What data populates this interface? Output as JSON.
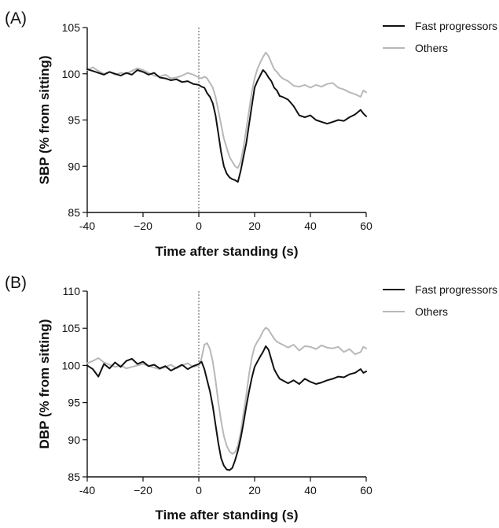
{
  "chart_data": [
    {
      "panel": "(A)",
      "type": "line",
      "xlabel": "Time after standing (s)",
      "ylabel": "SBP (% from sitting)",
      "xlim": [
        -40,
        60
      ],
      "ylim": [
        85,
        105
      ],
      "xticks": [
        "-40",
        "−20",
        "0",
        "20",
        "40",
        "60"
      ],
      "yticks": [
        "85",
        "90",
        "95",
        "100",
        "105"
      ],
      "legend_position": "top-right",
      "reference_line_x": 0,
      "series": [
        {
          "name": "Fast progressors",
          "color": "#111111",
          "x": [
            -40,
            -38,
            -36,
            -34,
            -32,
            -30,
            -28,
            -26,
            -24,
            -22,
            -20,
            -18,
            -16,
            -14,
            -12,
            -10,
            -8,
            -6,
            -4,
            -2,
            0,
            1,
            2,
            3,
            4,
            5,
            6,
            7,
            8,
            9,
            10,
            11,
            12,
            13,
            14,
            15,
            16,
            17,
            18,
            19,
            20,
            21,
            22,
            23,
            24,
            25,
            26,
            27,
            28,
            29,
            30,
            32,
            34,
            36,
            38,
            40,
            42,
            44,
            46,
            48,
            50,
            52,
            54,
            56,
            58,
            59,
            60
          ],
          "values": [
            100.5,
            100.3,
            100.1,
            99.9,
            100.2,
            100.0,
            99.8,
            100.1,
            99.9,
            100.4,
            100.2,
            99.9,
            100.1,
            99.6,
            99.5,
            99.3,
            99.4,
            99.1,
            99.2,
            98.9,
            98.8,
            98.6,
            98.5,
            97.9,
            97.5,
            96.8,
            95.5,
            93.5,
            91.5,
            90.0,
            89.2,
            88.8,
            88.6,
            88.5,
            88.3,
            89.5,
            91.0,
            92.5,
            94.5,
            96.5,
            98.5,
            99.2,
            99.8,
            100.4,
            100.1,
            99.6,
            99.2,
            98.5,
            98.2,
            97.6,
            97.5,
            97.2,
            96.5,
            95.5,
            95.3,
            95.5,
            95.0,
            94.8,
            94.6,
            94.8,
            95.0,
            94.9,
            95.3,
            95.6,
            96.1,
            95.7,
            95.4
          ]
        },
        {
          "name": "Others",
          "color": "#b8b8b8",
          "x": [
            -40,
            -38,
            -36,
            -34,
            -32,
            -30,
            -28,
            -26,
            -24,
            -22,
            -20,
            -18,
            -16,
            -14,
            -12,
            -10,
            -8,
            -6,
            -4,
            -2,
            0,
            1,
            2,
            3,
            4,
            5,
            6,
            7,
            8,
            9,
            10,
            11,
            12,
            13,
            14,
            15,
            16,
            17,
            18,
            19,
            20,
            21,
            22,
            23,
            24,
            25,
            26,
            27,
            28,
            29,
            30,
            32,
            34,
            36,
            38,
            40,
            42,
            44,
            46,
            48,
            50,
            52,
            54,
            56,
            58,
            59,
            60
          ],
          "values": [
            100.4,
            100.7,
            100.3,
            100.0,
            100.2,
            99.9,
            100.1,
            100.0,
            100.3,
            100.6,
            100.4,
            100.1,
            99.8,
            99.7,
            99.9,
            99.5,
            99.6,
            99.8,
            100.1,
            99.9,
            99.6,
            99.5,
            99.7,
            99.5,
            99.0,
            98.5,
            97.5,
            96.0,
            94.5,
            93.0,
            92.0,
            91.0,
            90.5,
            90.0,
            89.8,
            90.5,
            92.0,
            94.0,
            96.0,
            98.0,
            99.5,
            100.5,
            101.2,
            101.8,
            102.3,
            101.9,
            101.2,
            100.5,
            100.2,
            99.8,
            99.5,
            99.2,
            98.7,
            98.6,
            98.8,
            98.5,
            98.8,
            98.6,
            98.9,
            99.0,
            98.5,
            98.3,
            98.0,
            97.8,
            97.5,
            98.2,
            98.0
          ]
        }
      ]
    },
    {
      "panel": "(B)",
      "type": "line",
      "xlabel": "Time after standing (s)",
      "ylabel": "DBP (% from sitting)",
      "xlim": [
        -40,
        60
      ],
      "ylim": [
        85,
        110
      ],
      "xticks": [
        "-40",
        "−20",
        "0",
        "20",
        "40",
        "60"
      ],
      "yticks": [
        "85",
        "90",
        "95",
        "100",
        "105",
        "110"
      ],
      "legend_position": "top-right",
      "reference_line_x": 0,
      "series": [
        {
          "name": "Fast progressors",
          "color": "#111111",
          "x": [
            -40,
            -38,
            -36,
            -34,
            -32,
            -30,
            -28,
            -26,
            -24,
            -22,
            -20,
            -18,
            -16,
            -14,
            -12,
            -10,
            -8,
            -6,
            -4,
            -2,
            0,
            1,
            2,
            3,
            4,
            5,
            6,
            7,
            8,
            9,
            10,
            11,
            12,
            13,
            14,
            15,
            16,
            17,
            18,
            19,
            20,
            21,
            22,
            23,
            24,
            25,
            26,
            27,
            28,
            29,
            30,
            32,
            34,
            36,
            38,
            40,
            42,
            44,
            46,
            48,
            50,
            52,
            54,
            56,
            58,
            59,
            60
          ],
          "values": [
            100.0,
            99.5,
            98.5,
            100.2,
            99.6,
            100.4,
            99.8,
            100.6,
            100.9,
            100.2,
            100.5,
            99.9,
            100.1,
            99.6,
            99.9,
            99.3,
            99.7,
            100.1,
            99.5,
            99.9,
            100.2,
            100.5,
            99.5,
            98.0,
            96.5,
            94.5,
            92.0,
            89.5,
            87.5,
            86.5,
            86.0,
            85.9,
            86.2,
            87.2,
            88.5,
            90.2,
            92.2,
            94.5,
            96.5,
            98.3,
            99.8,
            100.5,
            101.2,
            101.8,
            102.6,
            102.1,
            100.8,
            99.5,
            98.8,
            98.2,
            98.0,
            97.6,
            98.0,
            97.5,
            98.2,
            97.8,
            97.5,
            97.7,
            98.0,
            98.2,
            98.5,
            98.4,
            98.8,
            99.0,
            99.5,
            99.0,
            99.2
          ]
        },
        {
          "name": "Others",
          "color": "#b8b8b8",
          "x": [
            -40,
            -38,
            -36,
            -34,
            -32,
            -30,
            -28,
            -26,
            -24,
            -22,
            -20,
            -18,
            -16,
            -14,
            -12,
            -10,
            -8,
            -6,
            -4,
            -2,
            0,
            1,
            2,
            3,
            4,
            5,
            6,
            7,
            8,
            9,
            10,
            11,
            12,
            13,
            14,
            15,
            16,
            17,
            18,
            19,
            20,
            21,
            22,
            23,
            24,
            25,
            26,
            27,
            28,
            29,
            30,
            32,
            34,
            36,
            38,
            40,
            42,
            44,
            46,
            48,
            50,
            52,
            54,
            56,
            58,
            59,
            60
          ],
          "values": [
            100.3,
            100.6,
            101.0,
            100.4,
            100.1,
            99.8,
            100.0,
            99.6,
            99.8,
            100.0,
            100.2,
            99.9,
            99.7,
            99.5,
            99.8,
            100.1,
            99.6,
            100.0,
            100.3,
            99.8,
            100.0,
            101.0,
            102.8,
            103.0,
            102.2,
            100.5,
            98.0,
            95.0,
            92.5,
            90.5,
            89.2,
            88.4,
            88.1,
            88.3,
            89.2,
            91.0,
            93.5,
            96.0,
            98.8,
            101.0,
            102.5,
            103.2,
            103.8,
            104.6,
            105.1,
            104.8,
            104.2,
            103.6,
            103.2,
            103.0,
            102.8,
            102.4,
            102.8,
            102.0,
            102.6,
            102.5,
            102.2,
            102.7,
            102.4,
            102.3,
            102.5,
            101.8,
            102.2,
            101.5,
            101.8,
            102.5,
            102.3
          ]
        }
      ]
    }
  ]
}
